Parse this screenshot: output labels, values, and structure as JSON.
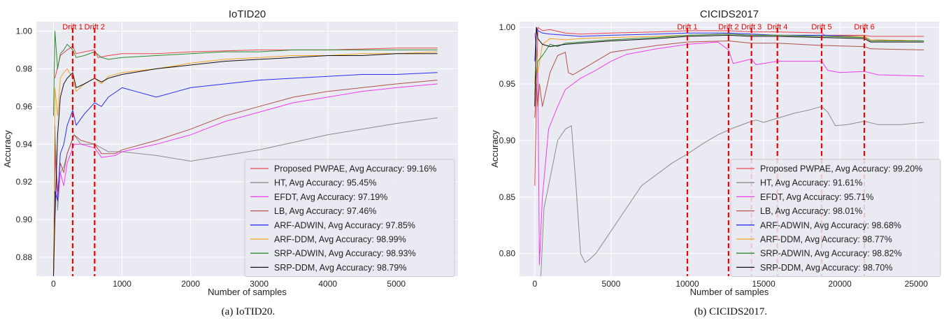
{
  "chart_data": [
    {
      "type": "line",
      "title": "IoTID20",
      "xlabel": "Number of samples",
      "ylabel": "Accuracy",
      "xlim": [
        -250,
        5900
      ],
      "ylim": [
        0.87,
        1.005
      ],
      "xticks": [
        0,
        1000,
        2000,
        3000,
        4000,
        5000
      ],
      "yticks": [
        0.88,
        0.9,
        0.92,
        0.94,
        0.96,
        0.98,
        1.0
      ],
      "grid": true,
      "legend_position": "lower-right",
      "caption": "(a)  IoTID20.",
      "drifts": [
        {
          "label": "Drift 1",
          "x": 280
        },
        {
          "label": "Drift 2",
          "x": 600
        }
      ],
      "series": [
        {
          "name": "Proposed PWPAE, Avg Accuracy: 99.16%",
          "color": "#e8474f",
          "x": [
            20,
            100,
            200,
            280,
            330,
            450,
            600,
            650,
            800,
            1000,
            1500,
            2000,
            3000,
            4000,
            5000,
            5600
          ],
          "y": [
            0.975,
            0.987,
            0.99,
            0.992,
            0.988,
            0.989,
            0.99,
            0.986,
            0.987,
            0.988,
            0.988,
            0.989,
            0.99,
            0.99,
            0.991,
            0.991
          ]
        },
        {
          "name": "HT, Avg Accuracy: 95.45%",
          "color": "#8c8c8c",
          "x": [
            0,
            20,
            60,
            100,
            150,
            200,
            300,
            400,
            600,
            800,
            1000,
            1500,
            2000,
            2500,
            3000,
            3500,
            4000,
            4500,
            5000,
            5600
          ],
          "y": [
            0.87,
            0.95,
            0.905,
            0.925,
            0.928,
            0.935,
            0.945,
            0.94,
            0.94,
            0.936,
            0.936,
            0.934,
            0.931,
            0.934,
            0.937,
            0.941,
            0.945,
            0.948,
            0.951,
            0.954
          ]
        },
        {
          "name": "EFDT, Avg Accuracy: 97.19%",
          "color": "#f13cf1",
          "x": [
            0,
            20,
            60,
            100,
            150,
            200,
            300,
            400,
            600,
            700,
            900,
            1000,
            1500,
            2000,
            2500,
            3000,
            3500,
            4000,
            4500,
            5000,
            5600
          ],
          "y": [
            0.87,
            0.935,
            0.91,
            0.925,
            0.918,
            0.93,
            0.94,
            0.94,
            0.938,
            0.933,
            0.934,
            0.936,
            0.94,
            0.945,
            0.952,
            0.957,
            0.962,
            0.965,
            0.968,
            0.97,
            0.972
          ]
        },
        {
          "name": "LB, Avg Accuracy: 97.46%",
          "color": "#b2504b",
          "x": [
            0,
            20,
            60,
            100,
            150,
            200,
            300,
            400,
            600,
            700,
            900,
            1000,
            1500,
            2000,
            2500,
            3000,
            3500,
            4000,
            4500,
            5000,
            5600
          ],
          "y": [
            0.87,
            0.94,
            0.915,
            0.93,
            0.925,
            0.935,
            0.945,
            0.942,
            0.94,
            0.935,
            0.935,
            0.937,
            0.942,
            0.948,
            0.955,
            0.96,
            0.965,
            0.968,
            0.97,
            0.972,
            0.974
          ]
        },
        {
          "name": "ARF-ADWIN, Avg Accuracy: 97.85%",
          "color": "#2a2ef0",
          "x": [
            0,
            20,
            60,
            100,
            150,
            200,
            280,
            330,
            450,
            600,
            700,
            800,
            1000,
            1200,
            1500,
            1800,
            2000,
            2500,
            3000,
            3500,
            4000,
            4500,
            5000,
            5600
          ],
          "y": [
            0.87,
            0.915,
            0.91,
            0.935,
            0.94,
            0.95,
            0.958,
            0.95,
            0.956,
            0.962,
            0.96,
            0.965,
            0.97,
            0.968,
            0.965,
            0.968,
            0.97,
            0.972,
            0.974,
            0.975,
            0.976,
            0.977,
            0.977,
            0.978
          ]
        },
        {
          "name": "ARF-DDM, Avg Accuracy: 98.99%",
          "color": "#f2a423",
          "x": [
            0,
            20,
            60,
            100,
            150,
            200,
            280,
            330,
            450,
            600,
            700,
            800,
            1000,
            1500,
            2000,
            2500,
            3000,
            3500,
            4000,
            4500,
            5000,
            5600
          ],
          "y": [
            0.87,
            0.97,
            0.955,
            0.975,
            0.978,
            0.98,
            0.975,
            0.968,
            0.972,
            0.975,
            0.972,
            0.976,
            0.978,
            0.98,
            0.983,
            0.985,
            0.986,
            0.987,
            0.987,
            0.988,
            0.988,
            0.989
          ]
        },
        {
          "name": "SRP-ADWIN, Avg Accuracy: 98.93%",
          "color": "#2e8b2e",
          "x": [
            0,
            20,
            60,
            100,
            150,
            200,
            280,
            330,
            450,
            600,
            700,
            800,
            1000,
            1500,
            2000,
            2500,
            3000,
            3500,
            4000,
            4500,
            5000,
            5600
          ],
          "y": [
            0.955,
            1.0,
            0.98,
            0.988,
            0.99,
            0.993,
            0.99,
            0.986,
            0.987,
            0.989,
            0.986,
            0.985,
            0.986,
            0.987,
            0.988,
            0.989,
            0.989,
            0.99,
            0.99,
            0.99,
            0.99,
            0.99
          ]
        },
        {
          "name": "SRP-DDM, Avg Accuracy: 98.79%",
          "color": "#111111",
          "x": [
            0,
            20,
            60,
            100,
            150,
            200,
            280,
            330,
            450,
            600,
            700,
            800,
            1000,
            1500,
            2000,
            2500,
            3000,
            3500,
            4000,
            4500,
            5000,
            5600
          ],
          "y": [
            0.87,
            0.9,
            0.945,
            0.965,
            0.972,
            0.975,
            0.978,
            0.97,
            0.972,
            0.975,
            0.973,
            0.975,
            0.977,
            0.98,
            0.982,
            0.984,
            0.985,
            0.986,
            0.987,
            0.987,
            0.988,
            0.988
          ]
        }
      ]
    },
    {
      "type": "line",
      "title": "CICIDS2017",
      "xlabel": "Number of samples",
      "ylabel": "Accuracy",
      "xlim": [
        -1000,
        26500
      ],
      "ylim": [
        0.78,
        1.005
      ],
      "xticks": [
        0,
        5000,
        10000,
        15000,
        20000,
        25000
      ],
      "yticks": [
        0.8,
        0.85,
        0.9,
        0.95,
        1.0
      ],
      "grid": true,
      "legend_position": "lower-right",
      "caption": "(b)  CICIDS2017.",
      "drifts": [
        {
          "label": "Drift 1",
          "x": 10000
        },
        {
          "label": "Drift 2",
          "x": 12700
        },
        {
          "label": "Drift 3",
          "x": 14200
        },
        {
          "label": "Drift 4",
          "x": 15900
        },
        {
          "label": "Drift 5",
          "x": 18800
        },
        {
          "label": "Drift 6",
          "x": 21600
        }
      ],
      "series": [
        {
          "name": "Proposed PWPAE, Avg Accuracy: 99.20%",
          "color": "#e8474f",
          "x": [
            0,
            200,
            500,
            1000,
            2000,
            3000,
            5000,
            8000,
            10000,
            12000,
            12700,
            14200,
            15900,
            18800,
            19000,
            21600,
            22000,
            25500
          ],
          "y": [
            0.86,
            1.0,
            0.997,
            0.998,
            0.995,
            0.994,
            0.995,
            0.996,
            0.997,
            0.997,
            0.997,
            0.996,
            0.996,
            0.995,
            0.993,
            0.993,
            0.992,
            0.992
          ]
        },
        {
          "name": "HT, Avg Accuracy: 91.61%",
          "color": "#8c8c8c",
          "x": [
            400,
            600,
            900,
            1200,
            1500,
            2000,
            2400,
            2700,
            3000,
            3300,
            3600,
            4000,
            5000,
            6000,
            7000,
            8000,
            9000,
            10000,
            11000,
            12000,
            13000,
            14000,
            14500,
            15000,
            16000,
            17000,
            18000,
            18800,
            19200,
            19700,
            20500,
            21600,
            22500,
            24000,
            25500
          ],
          "y": [
            0.78,
            0.84,
            0.86,
            0.88,
            0.9,
            0.91,
            0.913,
            0.86,
            0.8,
            0.792,
            0.795,
            0.8,
            0.82,
            0.84,
            0.86,
            0.87,
            0.88,
            0.888,
            0.897,
            0.905,
            0.911,
            0.916,
            0.918,
            0.916,
            0.92,
            0.924,
            0.927,
            0.93,
            0.925,
            0.913,
            0.914,
            0.917,
            0.914,
            0.914,
            0.916
          ]
        },
        {
          "name": "EFDT, Avg Accuracy: 95.71%",
          "color": "#f13cf1",
          "x": [
            0,
            100,
            200,
            300,
            500,
            700,
            900,
            1200,
            1500,
            2000,
            3000,
            4000,
            5000,
            6000,
            8000,
            10000,
            12000,
            12700,
            13000,
            14200,
            14500,
            15900,
            18800,
            19200,
            20000,
            21600,
            22500,
            25500
          ],
          "y": [
            0.995,
            0.98,
            0.96,
            0.79,
            0.85,
            0.88,
            0.91,
            0.92,
            0.93,
            0.945,
            0.955,
            0.962,
            0.97,
            0.976,
            0.981,
            0.985,
            0.987,
            0.98,
            0.968,
            0.972,
            0.967,
            0.97,
            0.97,
            0.962,
            0.96,
            0.961,
            0.958,
            0.957
          ]
        },
        {
          "name": "LB, Avg Accuracy: 98.01%",
          "color": "#b2504b",
          "x": [
            0,
            100,
            200,
            300,
            500,
            1000,
            1500,
            2000,
            2200,
            2500,
            3000,
            4000,
            5000,
            8000,
            10000,
            12700,
            14200,
            15900,
            18800,
            21600,
            22000,
            25500
          ],
          "y": [
            0.92,
            0.95,
            0.93,
            0.95,
            0.93,
            0.96,
            0.975,
            0.978,
            0.96,
            0.958,
            0.962,
            0.97,
            0.978,
            0.984,
            0.987,
            0.988,
            0.986,
            0.986,
            0.984,
            0.983,
            0.981,
            0.98
          ]
        },
        {
          "name": "ARF-ADWIN, Avg Accuracy: 98.68%",
          "color": "#2a2ef0",
          "x": [
            0,
            100,
            200,
            500,
            1000,
            2000,
            3000,
            5000,
            8000,
            10000,
            12700,
            14200,
            15900,
            18800,
            21600,
            22000,
            25500
          ],
          "y": [
            0.97,
            1.0,
            0.997,
            0.995,
            0.994,
            0.993,
            0.992,
            0.993,
            0.994,
            0.995,
            0.995,
            0.994,
            0.993,
            0.993,
            0.992,
            0.989,
            0.988
          ]
        },
        {
          "name": "ARF-DDM, Avg Accuracy: 98.77%",
          "color": "#f2a423",
          "x": [
            0,
            100,
            200,
            500,
            1000,
            2000,
            3000,
            5000,
            8000,
            10000,
            12700,
            14200,
            15900,
            18800,
            21600,
            22000,
            25500
          ],
          "y": [
            0.95,
            0.98,
            0.96,
            0.985,
            0.99,
            0.989,
            0.99,
            0.991,
            0.992,
            0.993,
            0.994,
            0.993,
            0.993,
            0.992,
            0.992,
            0.989,
            0.988
          ]
        },
        {
          "name": "SRP-ADWIN, Avg Accuracy: 98.82%",
          "color": "#2e8b2e",
          "x": [
            0,
            100,
            200,
            500,
            1000,
            1500,
            2000,
            3000,
            5000,
            8000,
            10000,
            12700,
            14200,
            15900,
            18800,
            21600,
            22000,
            25500
          ],
          "y": [
            0.94,
            0.96,
            0.97,
            0.975,
            0.985,
            0.983,
            0.986,
            0.987,
            0.989,
            0.991,
            0.993,
            0.994,
            0.993,
            0.993,
            0.992,
            0.991,
            0.988,
            0.988
          ]
        },
        {
          "name": "SRP-DDM, Avg Accuracy: 98.70%",
          "color": "#111111",
          "x": [
            0,
            100,
            200,
            500,
            1000,
            1500,
            2000,
            3000,
            5000,
            8000,
            10000,
            12700,
            14200,
            15900,
            18800,
            21600,
            22000,
            25500
          ],
          "y": [
            0.93,
            1.0,
            0.99,
            0.985,
            0.983,
            0.984,
            0.985,
            0.986,
            0.988,
            0.99,
            0.992,
            0.993,
            0.992,
            0.992,
            0.991,
            0.99,
            0.987,
            0.987
          ]
        }
      ]
    }
  ]
}
